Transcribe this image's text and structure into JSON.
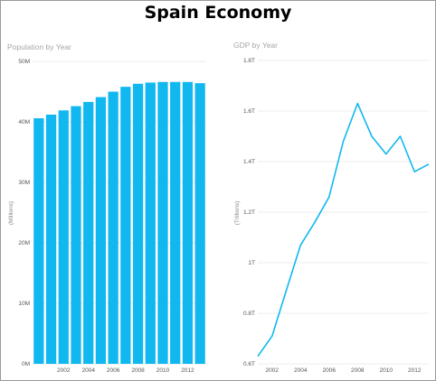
{
  "page": {
    "title": "Spain Economy"
  },
  "chart_data": [
    {
      "type": "bar",
      "title": "Population by Year",
      "ylabel": "(Millions)",
      "xlabel": "",
      "categories": [
        2000,
        2001,
        2002,
        2003,
        2004,
        2005,
        2006,
        2007,
        2008,
        2009,
        2010,
        2011,
        2012,
        2013
      ],
      "x_tick_labels": [
        "2002",
        "2004",
        "2006",
        "2008",
        "2010",
        "2012"
      ],
      "y_tick_labels": [
        "0M",
        "10M",
        "20M",
        "30M",
        "40M",
        "50M"
      ],
      "values": [
        40.6,
        41.2,
        41.9,
        42.6,
        43.3,
        44.1,
        45.0,
        45.8,
        46.3,
        46.5,
        46.6,
        46.6,
        46.6,
        46.4
      ],
      "ylim": [
        0,
        50
      ],
      "color": "#11b8f0",
      "grid": true
    },
    {
      "type": "line",
      "title": "GDP by Year",
      "ylabel": "(Trillions)",
      "xlabel": "",
      "x": [
        2001,
        2002,
        2003,
        2004,
        2005,
        2006,
        2007,
        2008,
        2009,
        2010,
        2011,
        2012,
        2013
      ],
      "x_tick_labels": [
        "2002",
        "2004",
        "2006",
        "2008",
        "2010",
        "2012"
      ],
      "y_tick_labels": [
        "0.6T",
        "0.8T",
        "1T",
        "1.2T",
        "1.4T",
        "1.6T",
        "1.8T"
      ],
      "values": [
        0.63,
        0.71,
        0.89,
        1.07,
        1.16,
        1.26,
        1.48,
        1.63,
        1.5,
        1.43,
        1.5,
        1.36,
        1.39
      ],
      "ylim": [
        0.6,
        1.8
      ],
      "xlim": [
        2001,
        2013
      ],
      "color": "#11b8f0",
      "grid": true
    }
  ]
}
